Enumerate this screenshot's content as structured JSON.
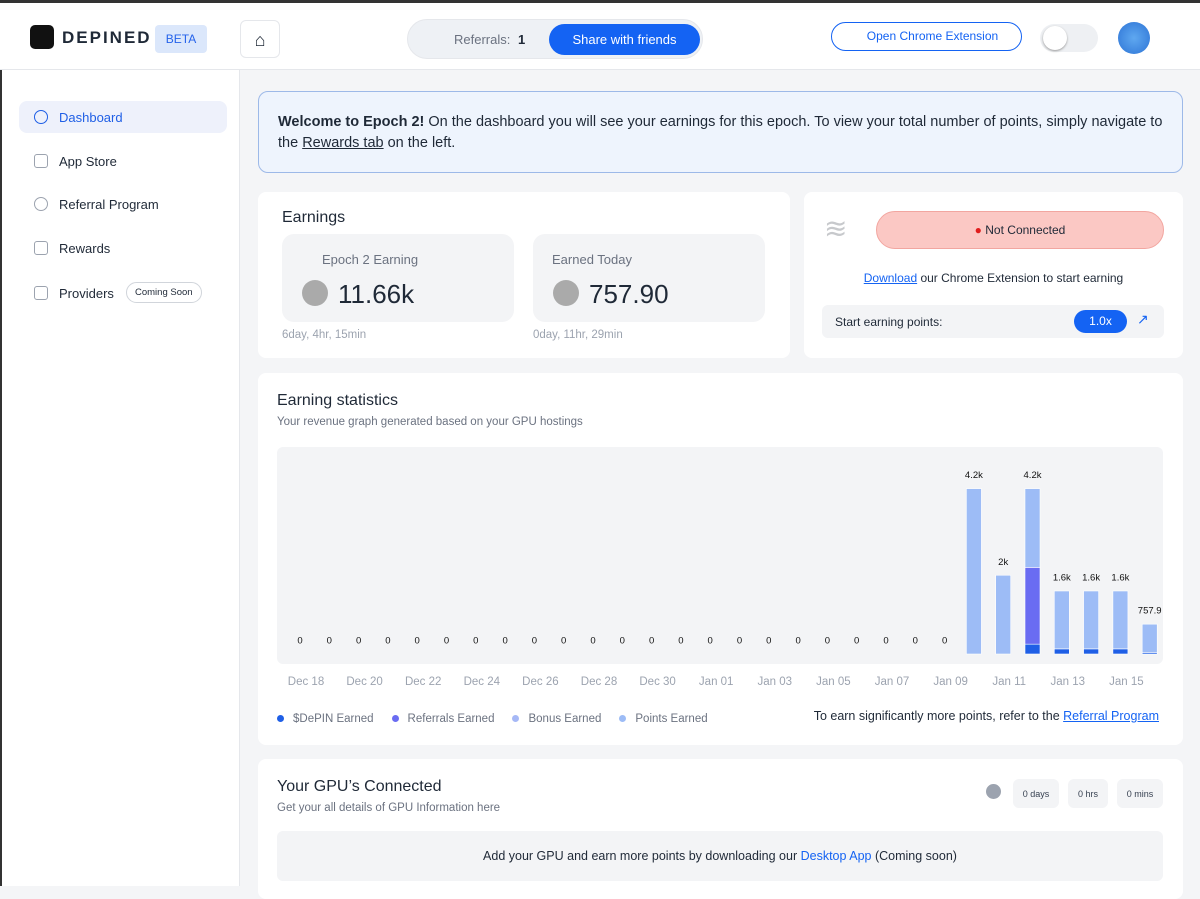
{
  "header": {
    "logo": "DEPINED",
    "badge": "BETA",
    "referrals_label": "Referrals:",
    "referrals_count": "1",
    "share_button": "Share with friends",
    "extension_button": "Open Chrome Extension"
  },
  "sidebar": {
    "items": [
      "Dashboard",
      "App Store",
      "Referral Program",
      "Rewards",
      "Providers"
    ],
    "coming_soon": "Coming Soon"
  },
  "welcome": {
    "bold": "Welcome to Epoch 2!",
    "text": " On the dashboard you will see your earnings for this epoch. To view your total number of points, simply navigate to the ",
    "link": "Rewards tab",
    "suffix": " on the left."
  },
  "earnings": {
    "title": "Earnings",
    "cards": [
      {
        "label": "Epoch 2 Earning",
        "value": "11.66k",
        "time": "6day, 4hr, 15min"
      },
      {
        "label": "Earned Today",
        "value": "757.90",
        "time": "0day, 11hr, 29min"
      }
    ]
  },
  "connection": {
    "status": "Not Connected",
    "download_link": "Download",
    "download_text": " our Chrome Extension to start earning",
    "start_label": "Start earning points:",
    "multiplier": "1.0x"
  },
  "stats": {
    "title": "Earning statistics",
    "subtitle": "Your revenue graph generated based on your GPU hostings",
    "footer_text": "To earn significantly more points, refer to the ",
    "footer_link": "Referral Program"
  },
  "chart_data": {
    "type": "bar",
    "stacked": true,
    "categories": [
      "Dec 18",
      null,
      "Dec 20",
      null,
      "Dec 22",
      null,
      "Dec 24",
      null,
      "Dec 26",
      null,
      "Dec 28",
      null,
      "Dec 30",
      null,
      "Jan 01",
      null,
      "Jan 03",
      null,
      "Jan 05",
      null,
      "Jan 07",
      null,
      "Jan 09",
      null,
      "Jan 11",
      null,
      "Jan 13",
      null,
      "Jan 15",
      null
    ],
    "series": [
      {
        "name": "$DePIN Earned",
        "color": "#1f5fe6",
        "values": [
          0,
          0,
          0,
          0,
          0,
          0,
          0,
          0,
          0,
          0,
          0,
          0,
          0,
          0,
          0,
          0,
          0,
          0,
          0,
          0,
          0,
          0,
          0,
          0,
          0,
          250,
          130,
          130,
          130,
          40
        ]
      },
      {
        "name": "Referrals Earned",
        "color": "#6a6cf2",
        "values": [
          0,
          0,
          0,
          0,
          0,
          0,
          0,
          0,
          0,
          0,
          0,
          0,
          0,
          0,
          0,
          0,
          0,
          0,
          0,
          0,
          0,
          0,
          0,
          0,
          0,
          1950,
          0,
          0,
          0,
          0
        ]
      },
      {
        "name": "Bonus Earned",
        "color": "#a6b8f6",
        "values": [
          0,
          0,
          0,
          0,
          0,
          0,
          0,
          0,
          0,
          0,
          0,
          0,
          0,
          0,
          0,
          0,
          0,
          0,
          0,
          0,
          0,
          0,
          0,
          0,
          0,
          0,
          0,
          0,
          0,
          0
        ]
      },
      {
        "name": "Points Earned",
        "color": "#9dbcf6",
        "values": [
          0,
          0,
          0,
          0,
          0,
          0,
          0,
          0,
          0,
          0,
          0,
          0,
          0,
          0,
          0,
          0,
          0,
          0,
          0,
          0,
          0,
          0,
          0,
          4200,
          2000,
          2000,
          1470,
          1470,
          1470,
          717.9
        ]
      }
    ],
    "totals": [
      0,
      0,
      0,
      0,
      0,
      0,
      0,
      0,
      0,
      0,
      0,
      0,
      0,
      0,
      0,
      0,
      0,
      0,
      0,
      0,
      0,
      0,
      0,
      4200,
      2000,
      4200,
      1600,
      1600,
      1600,
      757.9
    ],
    "total_labels": [
      "0",
      "0",
      "0",
      "0",
      "0",
      "0",
      "0",
      "0",
      "0",
      "0",
      "0",
      "0",
      "0",
      "0",
      "0",
      "0",
      "0",
      "0",
      "0",
      "0",
      "0",
      "0",
      "0",
      "4.2k",
      "2k",
      "4.2k",
      "1.6k",
      "1.6k",
      "1.6k",
      "757.9"
    ],
    "ylim": [
      0,
      4800
    ]
  },
  "gpu": {
    "title": "Your GPU’s Connected",
    "subtitle": "Get your all details of GPU Information here",
    "timers": [
      "0 days",
      "0 hrs",
      "0 mins"
    ],
    "banner_text": "Add your GPU and earn more points by downloading our ",
    "banner_link": "Desktop App",
    "banner_suffix": " (Coming soon)"
  }
}
